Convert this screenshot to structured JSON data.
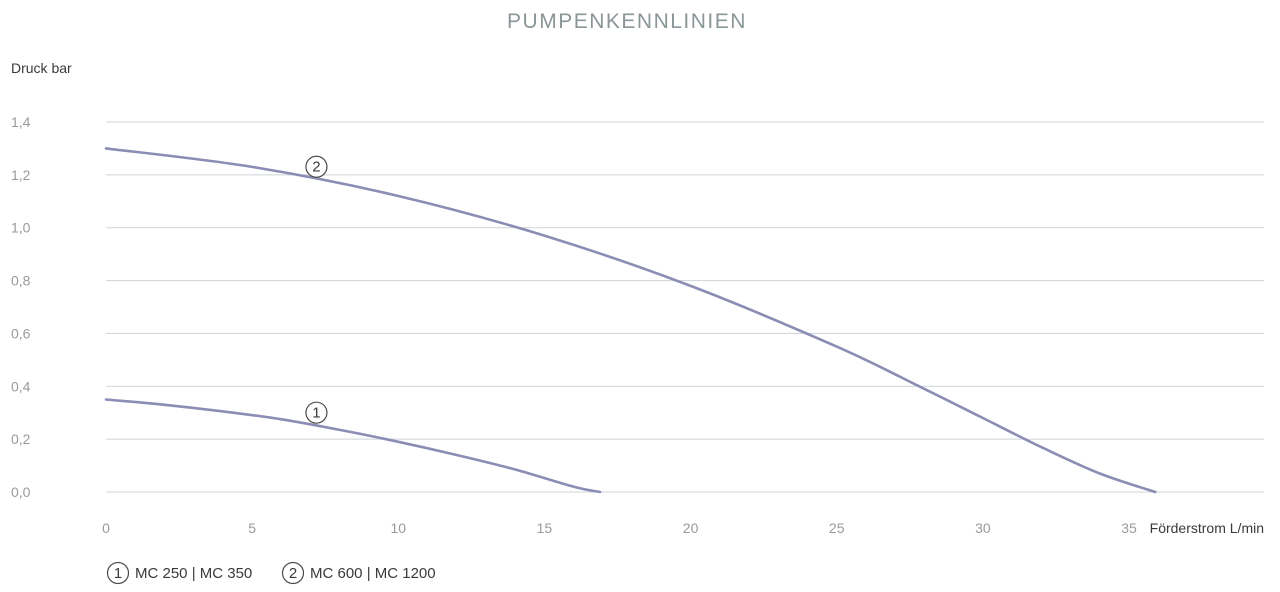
{
  "chart_data": {
    "type": "line",
    "title": "PUMPENKENNLINIEN",
    "ylabel": "Druck bar",
    "xlabel": "Förderstrom L/min",
    "ylim": [
      0,
      1.4
    ],
    "xlim": [
      0,
      40
    ],
    "y_ticks": [
      "0,0",
      "0,2",
      "0,4",
      "0,6",
      "0,8",
      "1,0",
      "1,2",
      "1,4"
    ],
    "x_ticks": [
      "0",
      "5",
      "10",
      "15",
      "20",
      "25",
      "30",
      "35"
    ],
    "grid": true,
    "legend_position": "bottom-left",
    "series": [
      {
        "name": "MC 250 | MC 350",
        "marker": "1",
        "color": "#8c8db5",
        "x": [
          0,
          2,
          4,
          6,
          8,
          10,
          12,
          14,
          16,
          16.9
        ],
        "y": [
          0.35,
          0.33,
          0.305,
          0.275,
          0.235,
          0.19,
          0.14,
          0.085,
          0.02,
          0.0
        ],
        "marker_at": 7.2
      },
      {
        "name": "MC 600 | MC 1200",
        "marker": "2",
        "color": "#8c8db5",
        "x": [
          0,
          5,
          10,
          15,
          20,
          25,
          28,
          30,
          32,
          34,
          35.9
        ],
        "y": [
          1.3,
          1.23,
          1.12,
          0.97,
          0.78,
          0.55,
          0.39,
          0.28,
          0.17,
          0.07,
          0.0
        ],
        "marker_at": 7.2
      }
    ]
  }
}
